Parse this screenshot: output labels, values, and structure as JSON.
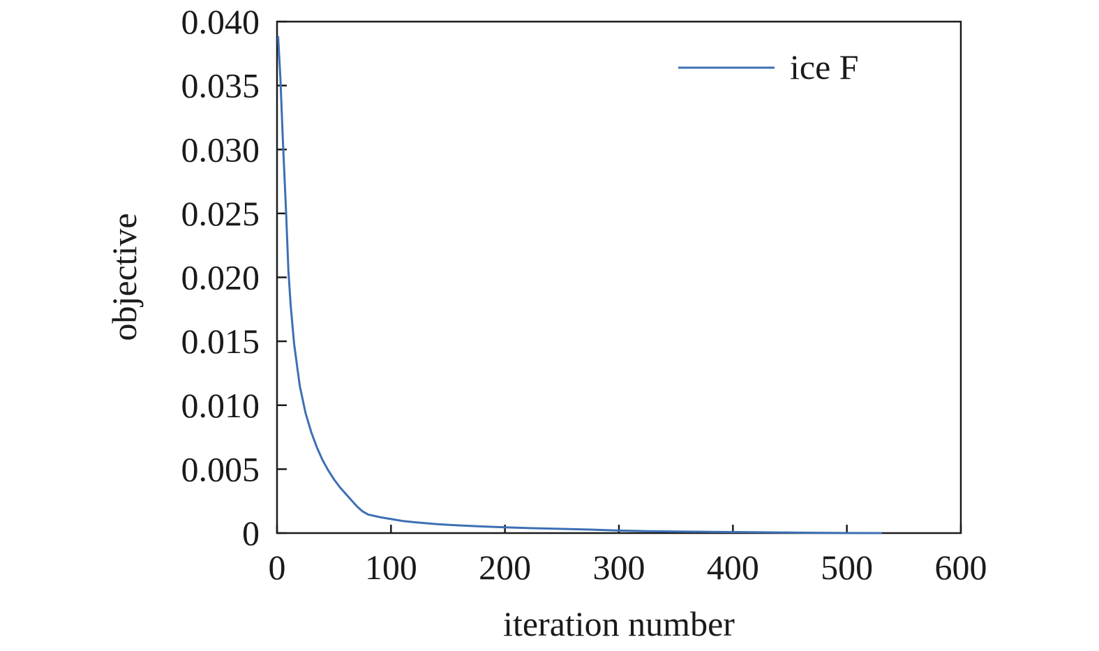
{
  "chart_data": {
    "type": "line",
    "xlabel": "iteration number",
    "ylabel": "objective",
    "xlim": [
      0,
      600
    ],
    "ylim": [
      0,
      0.04
    ],
    "x_ticks": [
      {
        "value": 0,
        "label": "0"
      },
      {
        "value": 100,
        "label": "100"
      },
      {
        "value": 200,
        "label": "200"
      },
      {
        "value": 300,
        "label": "300"
      },
      {
        "value": 400,
        "label": "400"
      },
      {
        "value": 500,
        "label": "500"
      },
      {
        "value": 600,
        "label": "600"
      }
    ],
    "y_ticks": [
      {
        "value": 0,
        "label": "0"
      },
      {
        "value": 0.005,
        "label": "0.005"
      },
      {
        "value": 0.01,
        "label": "0.010"
      },
      {
        "value": 0.015,
        "label": "0.015"
      },
      {
        "value": 0.02,
        "label": "0.020"
      },
      {
        "value": 0.025,
        "label": "0.025"
      },
      {
        "value": 0.03,
        "label": "0.030"
      },
      {
        "value": 0.035,
        "label": "0.035"
      },
      {
        "value": 0.04,
        "label": "0.040"
      }
    ],
    "grid": false,
    "legend_position": "top-right",
    "series": [
      {
        "name": "ice F",
        "color": "#3d6fb4",
        "x": [
          1,
          3,
          5,
          8,
          10,
          12,
          15,
          18,
          20,
          25,
          30,
          35,
          40,
          45,
          50,
          55,
          60,
          65,
          70,
          75,
          80,
          90,
          100,
          110,
          120,
          140,
          160,
          180,
          200,
          225,
          250,
          275,
          300,
          325,
          350,
          375,
          400,
          425,
          450,
          475,
          500,
          530
        ],
        "y": [
          0.0388,
          0.0355,
          0.031,
          0.025,
          0.0205,
          0.0178,
          0.0148,
          0.0128,
          0.0115,
          0.0094,
          0.0079,
          0.0067,
          0.0057,
          0.0049,
          0.0042,
          0.0036,
          0.0031,
          0.0026,
          0.0021,
          0.0017,
          0.00145,
          0.00125,
          0.0011,
          0.00095,
          0.00085,
          0.0007,
          0.0006,
          0.00052,
          0.00045,
          0.00038,
          0.00033,
          0.00027,
          0.0002,
          0.00015,
          0.00012,
          0.0001,
          8e-05,
          6e-05,
          4e-05,
          2e-05,
          1e-05,
          0.0
        ]
      }
    ]
  }
}
